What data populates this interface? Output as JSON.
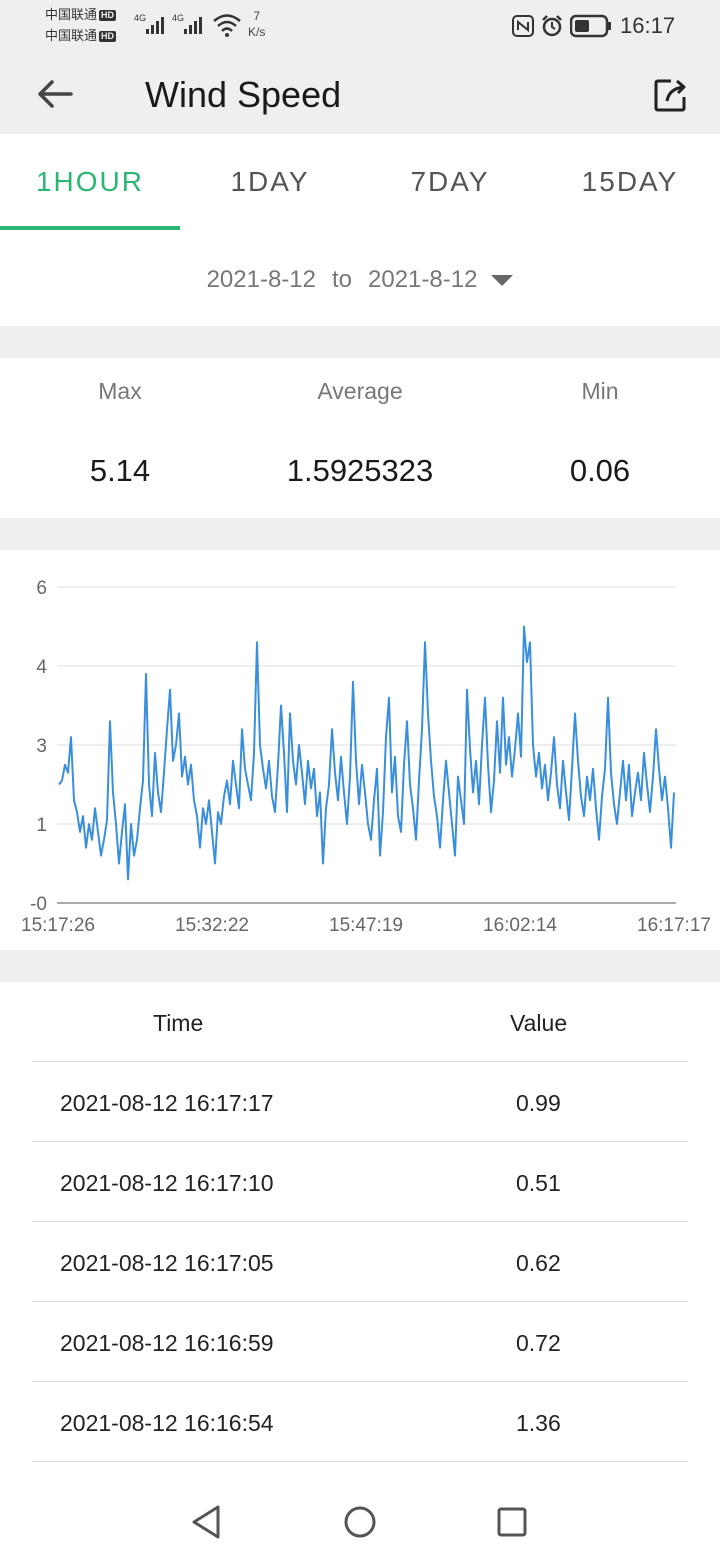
{
  "status_bar": {
    "carrier_1": "中国联通",
    "carrier_2": "中国联通",
    "hd_badge": "HD",
    "net_type_1": "4G",
    "net_type_2": "4G",
    "net_speed_value": "7",
    "net_speed_unit": "K/s",
    "time": "16:17",
    "battery_level": 0.5
  },
  "header": {
    "title": "Wind Speed"
  },
  "tabs": [
    {
      "label": "1HOUR",
      "active": true
    },
    {
      "label": "1DAY",
      "active": false
    },
    {
      "label": "7DAY",
      "active": false
    },
    {
      "label": "15DAY",
      "active": false
    }
  ],
  "date_range": {
    "start": "2021-8-12",
    "separator": "to",
    "end": "2021-8-12"
  },
  "stats": {
    "max_label": "Max",
    "max_value": "5.14",
    "avg_label": "Average",
    "avg_value": "1.5925323",
    "min_label": "Min",
    "min_value": "0.06"
  },
  "chart_data": {
    "type": "line",
    "y_ticks": [
      "6",
      "4",
      "3",
      "1",
      "-0"
    ],
    "x_ticks": [
      "15:17:26",
      "15:32:22",
      "15:47:19",
      "16:02:14",
      "16:17:17"
    ],
    "ylim": [
      0,
      6
    ],
    "grid": true,
    "series": [
      {
        "color": "#3a8fdc",
        "x_start": "15:17:26",
        "x_end": "16:17:17",
        "values": [
          2.0,
          2.1,
          2.5,
          2.3,
          3.1,
          1.6,
          1.3,
          0.9,
          1.2,
          0.7,
          1.0,
          0.8,
          1.4,
          0.9,
          0.6,
          0.8,
          1.1,
          3.3,
          1.8,
          1.0,
          0.5,
          0.9,
          1.5,
          0.3,
          1.0,
          0.6,
          0.8,
          1.4,
          2.1,
          3.9,
          2.0,
          1.2,
          2.8,
          1.8,
          1.3,
          2.3,
          3.2,
          3.7,
          2.6,
          3.0,
          3.4,
          2.2,
          2.7,
          2.0,
          2.5,
          1.6,
          1.2,
          0.7,
          1.4,
          1.0,
          1.6,
          0.9,
          0.5,
          1.3,
          1.0,
          1.7,
          2.1,
          1.5,
          2.6,
          2.0,
          1.4,
          3.2,
          2.4,
          2.0,
          1.6,
          2.8,
          4.6,
          3.0,
          2.4,
          1.9,
          2.6,
          1.7,
          1.3,
          2.5,
          3.5,
          2.8,
          1.3,
          3.4,
          2.6,
          2.0,
          3.0,
          2.3,
          1.5,
          2.6,
          1.9,
          2.4,
          1.2,
          1.8,
          0.5,
          1.4,
          2.0,
          3.2,
          2.3,
          1.6,
          2.7,
          1.8,
          1.0,
          2.2,
          3.8,
          2.6,
          1.5,
          2.5,
          1.8,
          1.0,
          0.8,
          1.6,
          2.4,
          0.6,
          1.3,
          3.1,
          3.6,
          1.8,
          2.7,
          1.2,
          0.9,
          2.5,
          3.3,
          2.0,
          1.4,
          0.8,
          2.1,
          3.2,
          4.6,
          3.4,
          2.6,
          1.7,
          1.2,
          0.7,
          1.6,
          2.6,
          1.8,
          1.0,
          0.6,
          2.2,
          1.6,
          1.0,
          3.7,
          2.9,
          1.8,
          2.6,
          1.5,
          3.0,
          3.6,
          2.5,
          1.3,
          2.1,
          3.3,
          2.3,
          3.6,
          2.5,
          3.1,
          2.2,
          2.9,
          3.4,
          2.7,
          5.0,
          4.1,
          4.6,
          3.0,
          2.2,
          2.8,
          1.9,
          2.5,
          1.6,
          2.3,
          3.1,
          2.0,
          1.4,
          2.6,
          1.8,
          1.1,
          2.4,
          3.4,
          2.6,
          1.7,
          1.2,
          2.2,
          1.6,
          2.4,
          1.4,
          0.8,
          1.7,
          2.4,
          3.6,
          2.3,
          1.5,
          1.0,
          1.8,
          2.6,
          1.6,
          2.5,
          1.2,
          1.8,
          2.3,
          1.6,
          2.8,
          2.0,
          1.3,
          2.2,
          3.2,
          2.4,
          1.6,
          2.2,
          1.4,
          0.7,
          1.8
        ]
      }
    ]
  },
  "table": {
    "col_time": "Time",
    "col_value": "Value",
    "rows": [
      {
        "time": "2021-08-12 16:17:17",
        "value": "0.99"
      },
      {
        "time": "2021-08-12 16:17:10",
        "value": "0.51"
      },
      {
        "time": "2021-08-12 16:17:05",
        "value": "0.62"
      },
      {
        "time": "2021-08-12 16:16:59",
        "value": "0.72"
      },
      {
        "time": "2021-08-12 16:16:54",
        "value": "1.36"
      }
    ]
  },
  "nav": {
    "back_icon": "triangle-back-icon",
    "home_icon": "circle-home-icon",
    "recents_icon": "square-recents-icon"
  }
}
